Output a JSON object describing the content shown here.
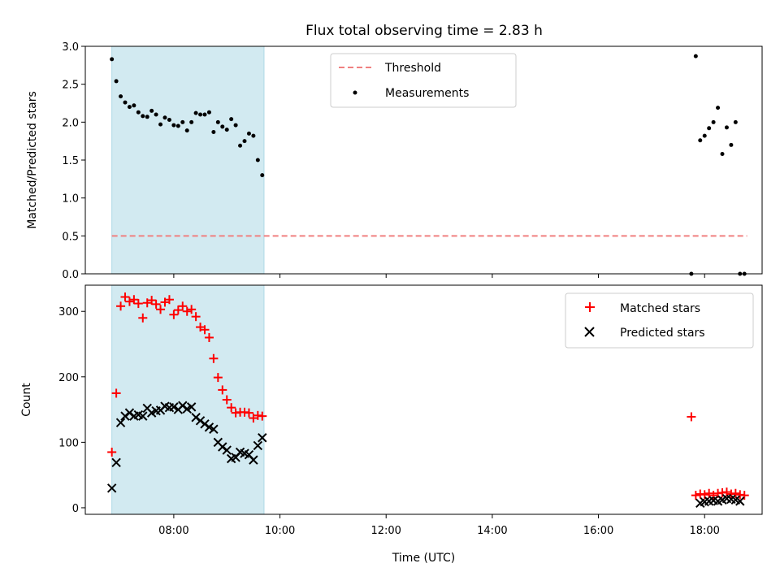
{
  "title": "Flux total observing time = 2.83 h",
  "colors": {
    "threshold": "#f08080",
    "measurements": "#000000",
    "matched": "#ff0000",
    "predicted": "#000000",
    "span": "#add8e6"
  },
  "chart_data": [
    {
      "type": "scatter",
      "ylabel": "Matched/Predicted stars",
      "xlabel": "",
      "ylim": [
        0,
        3.0
      ],
      "yticks": [
        "0.0",
        "0.5",
        "1.0",
        "1.5",
        "2.0",
        "2.5",
        "3.0"
      ],
      "highlight_span": [
        "06:50",
        "09:42"
      ],
      "threshold": {
        "name": "Threshold",
        "value": 0.5,
        "x_range": [
          "06:50",
          "18:48"
        ]
      },
      "legend": {
        "entries": [
          "Threshold",
          "Measurements"
        ],
        "placement": "upper center"
      },
      "series": [
        {
          "name": "Measurements",
          "points": [
            [
              "06:50",
              2.83
            ],
            [
              "06:55",
              2.54
            ],
            [
              "07:00",
              2.34
            ],
            [
              "07:05",
              2.26
            ],
            [
              "07:10",
              2.2
            ],
            [
              "07:15",
              2.22
            ],
            [
              "07:20",
              2.13
            ],
            [
              "07:25",
              2.08
            ],
            [
              "07:30",
              2.07
            ],
            [
              "07:35",
              2.15
            ],
            [
              "07:40",
              2.1
            ],
            [
              "07:45",
              1.97
            ],
            [
              "07:50",
              2.06
            ],
            [
              "07:55",
              2.03
            ],
            [
              "08:00",
              1.96
            ],
            [
              "08:05",
              1.95
            ],
            [
              "08:10",
              2.0
            ],
            [
              "08:15",
              1.89
            ],
            [
              "08:20",
              2.0
            ],
            [
              "08:25",
              2.12
            ],
            [
              "08:30",
              2.1
            ],
            [
              "08:35",
              2.1
            ],
            [
              "08:40",
              2.13
            ],
            [
              "08:45",
              1.87
            ],
            [
              "08:50",
              2.0
            ],
            [
              "08:55",
              1.94
            ],
            [
              "09:00",
              1.9
            ],
            [
              "09:05",
              2.04
            ],
            [
              "09:10",
              1.96
            ],
            [
              "09:15",
              1.69
            ],
            [
              "09:20",
              1.75
            ],
            [
              "09:25",
              1.85
            ],
            [
              "09:30",
              1.82
            ],
            [
              "09:35",
              1.5
            ],
            [
              "09:40",
              1.3
            ],
            [
              "17:45",
              0.0
            ],
            [
              "17:50",
              2.87
            ],
            [
              "17:55",
              1.76
            ],
            [
              "18:00",
              1.82
            ],
            [
              "18:05",
              1.92
            ],
            [
              "18:10",
              2.0
            ],
            [
              "18:15",
              2.19
            ],
            [
              "18:20",
              1.58
            ],
            [
              "18:25",
              1.93
            ],
            [
              "18:30",
              1.7
            ],
            [
              "18:35",
              2.0
            ],
            [
              "18:40",
              0.0
            ],
            [
              "18:45",
              0.0
            ]
          ]
        }
      ]
    },
    {
      "type": "scatter",
      "ylabel": "Count",
      "xlabel": "Time (UTC)",
      "ylim": [
        -10,
        340
      ],
      "yticks": [
        "0",
        "100",
        "200",
        "300"
      ],
      "xticks": [
        "08:00",
        "10:00",
        "12:00",
        "14:00",
        "16:00",
        "18:00"
      ],
      "highlight_span": [
        "06:50",
        "09:42"
      ],
      "legend": {
        "entries": [
          "Matched stars",
          "Predicted stars"
        ],
        "placement": "upper right"
      },
      "series": [
        {
          "name": "Matched stars",
          "marker": "+",
          "points": [
            [
              "06:50",
              85
            ],
            [
              "06:55",
              175
            ],
            [
              "07:00",
              308
            ],
            [
              "07:05",
              322
            ],
            [
              "07:10",
              315
            ],
            [
              "07:15",
              318
            ],
            [
              "07:20",
              312
            ],
            [
              "07:25",
              290
            ],
            [
              "07:30",
              313
            ],
            [
              "07:35",
              317
            ],
            [
              "07:40",
              311
            ],
            [
              "07:45",
              303
            ],
            [
              "07:50",
              314
            ],
            [
              "07:55",
              318
            ],
            [
              "08:00",
              295
            ],
            [
              "08:05",
              302
            ],
            [
              "08:10",
              308
            ],
            [
              "08:15",
              300
            ],
            [
              "08:20",
              303
            ],
            [
              "08:25",
              292
            ],
            [
              "08:30",
              276
            ],
            [
              "08:35",
              272
            ],
            [
              "08:40",
              260
            ],
            [
              "08:45",
              228
            ],
            [
              "08:50",
              199
            ],
            [
              "08:55",
              180
            ],
            [
              "09:00",
              165
            ],
            [
              "09:05",
              153
            ],
            [
              "09:10",
              145
            ],
            [
              "09:15",
              146
            ],
            [
              "09:20",
              146
            ],
            [
              "09:25",
              145
            ],
            [
              "09:30",
              137
            ],
            [
              "09:35",
              141
            ],
            [
              "09:40",
              140
            ],
            [
              "17:45",
              139
            ],
            [
              "17:50",
              19
            ],
            [
              "17:55",
              21
            ],
            [
              "18:00",
              20
            ],
            [
              "18:05",
              22
            ],
            [
              "18:10",
              19
            ],
            [
              "18:15",
              22
            ],
            [
              "18:20",
              23
            ],
            [
              "18:25",
              24
            ],
            [
              "18:30",
              21
            ],
            [
              "18:35",
              22
            ],
            [
              "18:40",
              20
            ],
            [
              "18:45",
              19
            ]
          ]
        },
        {
          "name": "Predicted stars",
          "marker": "x",
          "points": [
            [
              "06:50",
              30
            ],
            [
              "06:55",
              69
            ],
            [
              "07:00",
              130
            ],
            [
              "07:05",
              140
            ],
            [
              "07:10",
              145
            ],
            [
              "07:15",
              140
            ],
            [
              "07:20",
              142
            ],
            [
              "07:25",
              140
            ],
            [
              "07:30",
              152
            ],
            [
              "07:35",
              145
            ],
            [
              "07:40",
              148
            ],
            [
              "07:45",
              149
            ],
            [
              "07:50",
              155
            ],
            [
              "07:55",
              153
            ],
            [
              "08:00",
              154
            ],
            [
              "08:05",
              150
            ],
            [
              "08:10",
              156
            ],
            [
              "08:15",
              151
            ],
            [
              "08:20",
              154
            ],
            [
              "08:25",
              138
            ],
            [
              "08:30",
              133
            ],
            [
              "08:35",
              128
            ],
            [
              "08:40",
              123
            ],
            [
              "08:45",
              120
            ],
            [
              "08:50",
              100
            ],
            [
              "08:55",
              93
            ],
            [
              "09:00",
              88
            ],
            [
              "09:05",
              75
            ],
            [
              "09:10",
              77
            ],
            [
              "09:15",
              85
            ],
            [
              "09:20",
              83
            ],
            [
              "09:25",
              81
            ],
            [
              "09:30",
              73
            ],
            [
              "09:35",
              95
            ],
            [
              "09:40",
              107
            ],
            [
              "17:55",
              7
            ],
            [
              "18:00",
              9
            ],
            [
              "18:05",
              10
            ],
            [
              "18:10",
              11
            ],
            [
              "18:15",
              10
            ],
            [
              "18:20",
              12
            ],
            [
              "18:25",
              14
            ],
            [
              "18:30",
              13
            ],
            [
              "18:35",
              12
            ],
            [
              "18:40",
              10
            ]
          ]
        }
      ]
    }
  ]
}
